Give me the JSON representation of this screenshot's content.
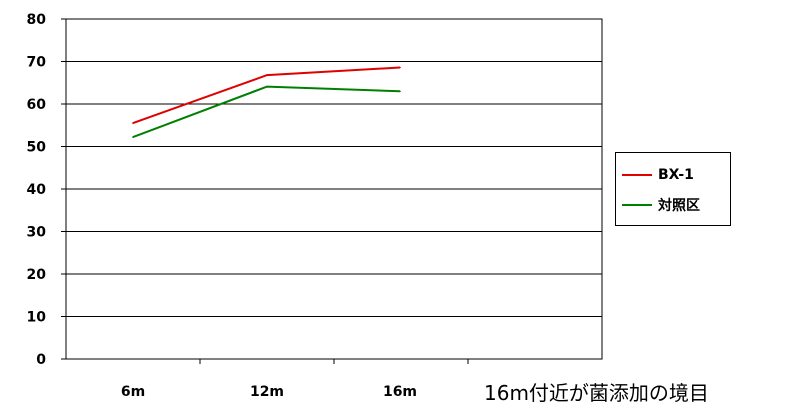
{
  "chart_data": {
    "type": "line",
    "categories": [
      "6m",
      "12m",
      "16m"
    ],
    "series": [
      {
        "name": "BX-1",
        "values": [
          55.5,
          66.8,
          68.6
        ],
        "color": "#e00000"
      },
      {
        "name": "対照区",
        "values": [
          52.2,
          64.1,
          63.0
        ],
        "color": "#008000"
      }
    ],
    "ylim": [
      0,
      80
    ],
    "yticks": [
      0,
      10,
      20,
      30,
      40,
      50,
      60,
      70,
      80
    ],
    "grid": true,
    "legend": "right",
    "annotation": "16m付近が菌添加の境目"
  }
}
